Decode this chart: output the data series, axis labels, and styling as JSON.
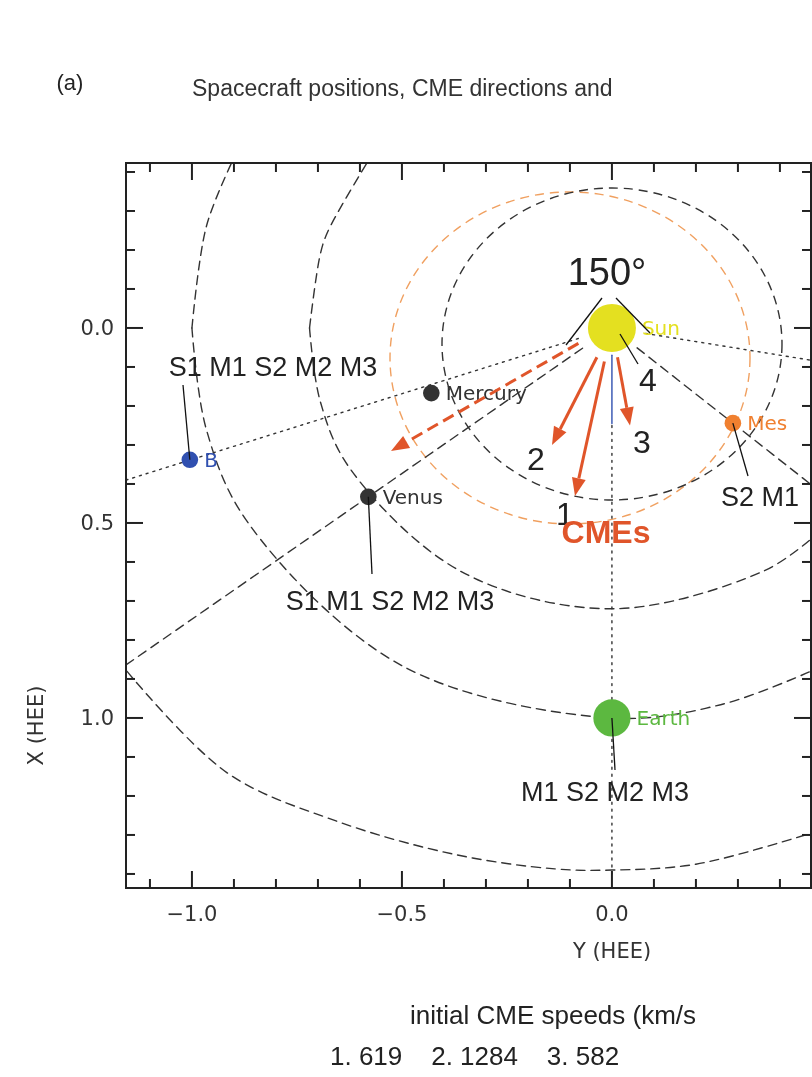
{
  "chart_data": {
    "type": "line",
    "title": "Spacecraft positions, CME directions and",
    "xlabel": "Y (HEE)",
    "ylabel": "X (HEE)",
    "xlim": [
      -1.157,
      0.474
    ],
    "ylim": [
      1.436,
      -0.423
    ],
    "xticks": [
      {
        "value": -1.1,
        "label": null
      },
      {
        "value": -1.0,
        "label": "−1.0"
      },
      {
        "value": -0.9,
        "label": null
      },
      {
        "value": -0.8,
        "label": null
      },
      {
        "value": -0.7,
        "label": null
      },
      {
        "value": -0.6,
        "label": null
      },
      {
        "value": -0.5,
        "label": "−0.5"
      },
      {
        "value": -0.4,
        "label": null
      },
      {
        "value": -0.3,
        "label": null
      },
      {
        "value": -0.2,
        "label": null
      },
      {
        "value": -0.1,
        "label": null
      },
      {
        "value": 0,
        "label": "0.0"
      },
      {
        "value": 0.1,
        "label": null
      },
      {
        "value": 0.2,
        "label": null
      },
      {
        "value": 0.3,
        "label": null
      },
      {
        "value": 0.4,
        "label": null
      }
    ],
    "yticks": [
      {
        "value": -0.4,
        "label": null
      },
      {
        "value": -0.3,
        "label": null
      },
      {
        "value": -0.2,
        "label": null
      },
      {
        "value": -0.1,
        "label": null
      },
      {
        "value": 0,
        "label": "0.0"
      },
      {
        "value": 0.1,
        "label": null
      },
      {
        "value": 0.2,
        "label": null
      },
      {
        "value": 0.3,
        "label": null
      },
      {
        "value": 0.4,
        "label": null
      },
      {
        "value": 0.5,
        "label": "0.5"
      },
      {
        "value": 0.6,
        "label": null
      },
      {
        "value": 0.7,
        "label": null
      },
      {
        "value": 0.8,
        "label": null
      },
      {
        "value": 0.9,
        "label": null
      },
      {
        "value": 1.0,
        "label": "1.0"
      },
      {
        "value": 1.1,
        "label": null
      },
      {
        "value": 1.2,
        "label": null
      },
      {
        "value": 1.3,
        "label": null
      },
      {
        "value": 1.4,
        "label": null
      }
    ],
    "series": [
      {
        "color": "#333333",
        "line_style": "dashed",
        "x": [
          -0.72,
          -0.695,
          -0.677,
          -0.585
        ],
        "values": [
          0,
          -0.186,
          -0.246,
          -0.42
        ]
      },
      {
        "color": "#333333",
        "line_style": "dashed",
        "x": [
          -0.72,
          -0.695,
          -0.624,
          -0.36,
          0,
          0.36,
          0.47
        ],
        "values": [
          0,
          0.186,
          0.36,
          0.624,
          0.72,
          0.624,
          0.545
        ]
      },
      {
        "color": "#333333",
        "line_style": "dashed",
        "x": [
          -1,
          -0.966,
          -0.907
        ],
        "values": [
          0,
          -0.259,
          -0.42
        ]
      },
      {
        "color": "#333333",
        "line_style": "dashed",
        "x": [
          -1,
          -0.966,
          -0.866,
          -0.5,
          0,
          0.259,
          0.47
        ],
        "values": [
          0,
          0.259,
          0.5,
          0.866,
          1,
          0.966,
          0.882
        ]
      },
      {
        "color": "#333333",
        "line_style": "dashed",
        "x": [
          -1.155,
          -0.917,
          -0.657,
          -0.374,
          -0.136,
          0,
          0.2,
          0.46
        ],
        "values": [
          0.88,
          1.14,
          1.264,
          1.35,
          1.387,
          1.39,
          1.375,
          1.3
        ]
      },
      {
        "color": "#333333",
        "line_style": "dotted",
        "x": [
          -0.08,
          -1.157
        ],
        "values": [
          0.027,
          0.39
        ]
      },
      {
        "color": "#333333",
        "line_style": "dotted",
        "x": [
          0.08,
          0.47
        ],
        "values": [
          0.014,
          0.082
        ]
      },
      {
        "color": "#333333",
        "line_style": "dotted",
        "x": [
          0,
          0
        ],
        "values": [
          0.25,
          1.4
        ]
      },
      {
        "color": "#333333",
        "line_style": "dashed",
        "x": [
          -0.07,
          -1.157
        ],
        "values": [
          0.052,
          0.864
        ]
      },
      {
        "color": "#333333",
        "line_style": "dashed",
        "x": [
          0.06,
          0.47
        ],
        "values": [
          0.051,
          0.398
        ]
      },
      {
        "color": "#3050b0",
        "line_style": "solid",
        "x": [
          0,
          0
        ],
        "values": [
          0.07,
          0.245
        ]
      },
      {
        "type": "bubble",
        "name": "Sun",
        "color": "#e4e020",
        "x": [
          0
        ],
        "values": [
          0
        ],
        "sizes": [
          1
        ]
      },
      {
        "type": "bubble",
        "name": "Mercury",
        "color": "#333333",
        "x": [
          -0.43
        ],
        "values": [
          0.167
        ],
        "sizes": [
          0.12
        ]
      },
      {
        "type": "bubble",
        "name": "Venus",
        "color": "#333333",
        "x": [
          -0.58
        ],
        "values": [
          0.433
        ],
        "sizes": [
          0.12
        ]
      },
      {
        "type": "bubble",
        "name": "B",
        "color": "#3050b0",
        "x": [
          -1.005
        ],
        "values": [
          0.338
        ],
        "sizes": [
          0.12
        ]
      },
      {
        "type": "bubble",
        "name": "Mes",
        "color": "#f08030",
        "x": [
          0.288
        ],
        "values": [
          0.244
        ],
        "sizes": [
          0.12
        ]
      },
      {
        "type": "bubble",
        "name": "Earth",
        "color": "#5cb840",
        "x": [
          0
        ],
        "values": [
          1.0
        ],
        "sizes": [
          0.6
        ]
      }
    ],
    "annotations": [
      "(a)",
      {
        "text": "S1 M1 S2 M2 M3",
        "x": -1.005,
        "y": 0.338
      },
      {
        "text": "S1 M1 S2 M2 M3",
        "x": -0.58,
        "y": 0.433
      },
      {
        "text": "S2 M1",
        "x": 0.288,
        "y": 0.244
      },
      {
        "text": "M1 S2 M2 M3",
        "x": 0,
        "y": 1.0
      },
      {
        "text": "150°",
        "x": 0,
        "y": 0
      },
      "4",
      "1",
      "2",
      "3",
      "CMEs",
      "initial CME speeds (km/s",
      "1. 619    2. 1284    3. 582"
    ]
  }
}
